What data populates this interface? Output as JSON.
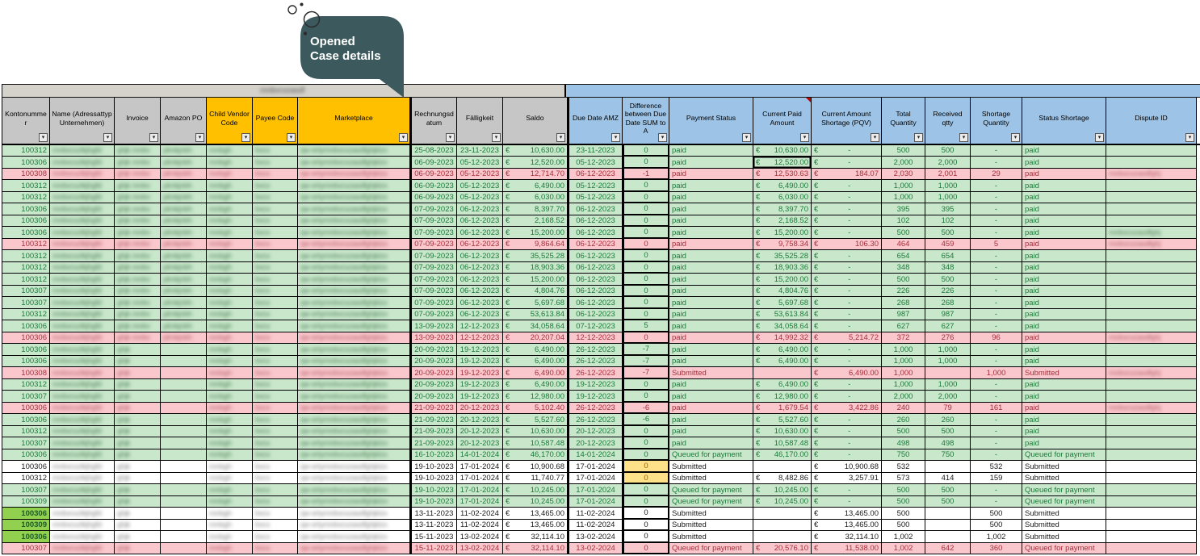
{
  "tooltip": {
    "line1": "Opened",
    "line2": "Case details",
    "bg": "#3C5A5E"
  },
  "columns": [
    {
      "id": "konto",
      "label": "Kontonummer",
      "group": "gray"
    },
    {
      "id": "name",
      "label": "Name (Adressattyp Unternehmen)",
      "group": "gray"
    },
    {
      "id": "invoice",
      "label": "Invoice",
      "group": "gray"
    },
    {
      "id": "po",
      "label": "Amazon PO",
      "group": "gray"
    },
    {
      "id": "cv",
      "label": "Child Vendor Code",
      "group": "orange"
    },
    {
      "id": "payee",
      "label": "Payee Code",
      "group": "orange"
    },
    {
      "id": "market",
      "label": "Marketplace",
      "group": "orange"
    },
    {
      "id": "rd",
      "label": "Rechnungsdatum",
      "group": "gray"
    },
    {
      "id": "fk",
      "label": "Fälligkeit",
      "group": "gray"
    },
    {
      "id": "saldo",
      "label": "Saldo",
      "group": "gray"
    },
    {
      "id": "due",
      "label": "Due Date AMZ",
      "group": "blue"
    },
    {
      "id": "diff",
      "label": "Difference between Due Date SUM to A",
      "group": "blue"
    },
    {
      "id": "pay",
      "label": "Payment Status",
      "group": "blue"
    },
    {
      "id": "paid",
      "label": "Current Paid Amount",
      "group": "blue"
    },
    {
      "id": "short",
      "label": "Current Amount Shortage (PQV)",
      "group": "blue"
    },
    {
      "id": "tq",
      "label": "Total Quantity",
      "group": "blue"
    },
    {
      "id": "rq",
      "label": "Received qtty",
      "group": "blue"
    },
    {
      "id": "sq",
      "label": "Shortage Quantity",
      "group": "blue"
    },
    {
      "id": "st",
      "label": "Status Shortage",
      "group": "blue"
    },
    {
      "id": "disp",
      "label": "Dispute ID",
      "group": "blue"
    }
  ],
  "rows": [
    {
      "konto": "100312",
      "rd": "25-08-2023",
      "fk": "23-11-2023",
      "saldo": "10,630.00",
      "due": "23-11-2023",
      "diff": "0",
      "pay": "paid",
      "paid": "10,630.00",
      "short": "-",
      "tq": "500",
      "rq": "500",
      "sq": "-",
      "st": "paid",
      "tone": "g",
      "po": 1,
      "disp": 0
    },
    {
      "konto": "100306",
      "rd": "06-09-2023",
      "fk": "05-12-2023",
      "saldo": "12,520.00",
      "due": "05-12-2023",
      "diff": "0",
      "pay": "paid",
      "paid": "12,520.00",
      "short": "-",
      "tq": "2,000",
      "rq": "2,000",
      "sq": "-",
      "st": "paid",
      "tone": "g",
      "po": 1,
      "disp": 0,
      "sel": 1
    },
    {
      "konto": "100308",
      "rd": "06-09-2023",
      "fk": "05-12-2023",
      "saldo": "12,714.70",
      "due": "06-12-2023",
      "diff": "-1",
      "pay": "paid",
      "paid": "12,530.63",
      "short": "184.07",
      "tq": "2,030",
      "rq": "2,001",
      "sq": "29",
      "st": "paid",
      "tone": "p",
      "po": 1,
      "disp": 1
    },
    {
      "konto": "100312",
      "rd": "06-09-2023",
      "fk": "05-12-2023",
      "saldo": "6,490.00",
      "due": "05-12-2023",
      "diff": "0",
      "pay": "paid",
      "paid": "6,490.00",
      "short": "-",
      "tq": "1,000",
      "rq": "1,000",
      "sq": "-",
      "st": "paid",
      "tone": "g",
      "po": 1,
      "disp": 0
    },
    {
      "konto": "100312",
      "rd": "06-09-2023",
      "fk": "05-12-2023",
      "saldo": "6,030.00",
      "due": "05-12-2023",
      "diff": "0",
      "pay": "paid",
      "paid": "6,030.00",
      "short": "-",
      "tq": "1,000",
      "rq": "1,000",
      "sq": "-",
      "st": "paid",
      "tone": "g",
      "po": 1,
      "disp": 0
    },
    {
      "konto": "100306",
      "rd": "07-09-2023",
      "fk": "06-12-2023",
      "saldo": "8,397.70",
      "due": "06-12-2023",
      "diff": "0",
      "pay": "paid",
      "paid": "8,397.70",
      "short": "-",
      "tq": "395",
      "rq": "395",
      "sq": "-",
      "st": "paid",
      "tone": "g",
      "po": 1,
      "disp": 0
    },
    {
      "konto": "100306",
      "rd": "07-09-2023",
      "fk": "06-12-2023",
      "saldo": "2,168.52",
      "due": "06-12-2023",
      "diff": "0",
      "pay": "paid",
      "paid": "2,168.52",
      "short": "-",
      "tq": "102",
      "rq": "102",
      "sq": "-",
      "st": "paid",
      "tone": "g",
      "po": 1,
      "disp": 0
    },
    {
      "konto": "100306",
      "rd": "07-09-2023",
      "fk": "06-12-2023",
      "saldo": "15,200.00",
      "due": "06-12-2023",
      "diff": "0",
      "pay": "paid",
      "paid": "15,200.00",
      "short": "-",
      "tq": "500",
      "rq": "500",
      "sq": "-",
      "st": "paid",
      "tone": "g",
      "po": 1,
      "disp": 1
    },
    {
      "konto": "100312",
      "rd": "07-09-2023",
      "fk": "06-12-2023",
      "saldo": "9,864.64",
      "due": "06-12-2023",
      "diff": "0",
      "pay": "paid",
      "paid": "9,758.34",
      "short": "106.30",
      "tq": "464",
      "rq": "459",
      "sq": "5",
      "st": "paid",
      "tone": "p",
      "po": 1,
      "disp": 1
    },
    {
      "konto": "100312",
      "rd": "07-09-2023",
      "fk": "06-12-2023",
      "saldo": "35,525.28",
      "due": "06-12-2023",
      "diff": "0",
      "pay": "paid",
      "paid": "35,525.28",
      "short": "-",
      "tq": "654",
      "rq": "654",
      "sq": "-",
      "st": "paid",
      "tone": "g",
      "po": 1,
      "disp": 0
    },
    {
      "konto": "100312",
      "rd": "07-09-2023",
      "fk": "06-12-2023",
      "saldo": "18,903.36",
      "due": "06-12-2023",
      "diff": "0",
      "pay": "paid",
      "paid": "18,903.36",
      "short": "-",
      "tq": "348",
      "rq": "348",
      "sq": "-",
      "st": "paid",
      "tone": "g",
      "po": 1,
      "disp": 0
    },
    {
      "konto": "100312",
      "rd": "07-09-2023",
      "fk": "06-12-2023",
      "saldo": "15,200.00",
      "due": "06-12-2023",
      "diff": "0",
      "pay": "paid",
      "paid": "15,200.00",
      "short": "-",
      "tq": "500",
      "rq": "500",
      "sq": "-",
      "st": "paid",
      "tone": "g",
      "po": 1,
      "disp": 0
    },
    {
      "konto": "100307",
      "rd": "07-09-2023",
      "fk": "06-12-2023",
      "saldo": "4,804.76",
      "due": "06-12-2023",
      "diff": "0",
      "pay": "paid",
      "paid": "4,804.76",
      "short": "-",
      "tq": "226",
      "rq": "226",
      "sq": "-",
      "st": "paid",
      "tone": "g",
      "po": 1,
      "disp": 0
    },
    {
      "konto": "100307",
      "rd": "07-09-2023",
      "fk": "06-12-2023",
      "saldo": "5,697.68",
      "due": "06-12-2023",
      "diff": "0",
      "pay": "paid",
      "paid": "5,697.68",
      "short": "-",
      "tq": "268",
      "rq": "268",
      "sq": "-",
      "st": "paid",
      "tone": "g",
      "po": 1,
      "disp": 0
    },
    {
      "konto": "100312",
      "rd": "07-09-2023",
      "fk": "06-12-2023",
      "saldo": "53,613.84",
      "due": "06-12-2023",
      "diff": "0",
      "pay": "paid",
      "paid": "53,613.84",
      "short": "-",
      "tq": "987",
      "rq": "987",
      "sq": "-",
      "st": "paid",
      "tone": "g",
      "po": 1,
      "disp": 0
    },
    {
      "konto": "100306",
      "rd": "13-09-2023",
      "fk": "12-12-2023",
      "saldo": "34,058.64",
      "due": "07-12-2023",
      "diff": "5",
      "pay": "paid",
      "paid": "34,058.64",
      "short": "-",
      "tq": "627",
      "rq": "627",
      "sq": "-",
      "st": "paid",
      "tone": "g",
      "po": 1,
      "disp": 0
    },
    {
      "konto": "100306",
      "rd": "13-09-2023",
      "fk": "12-12-2023",
      "saldo": "20,207.04",
      "due": "12-12-2023",
      "diff": "0",
      "pay": "paid",
      "paid": "14,992.32",
      "short": "5,214.72",
      "tq": "372",
      "rq": "276",
      "sq": "96",
      "st": "paid",
      "tone": "p",
      "po": 1,
      "disp": 1
    },
    {
      "konto": "100306",
      "rd": "20-09-2023",
      "fk": "19-12-2023",
      "saldo": "6,490.00",
      "due": "26-12-2023",
      "diff": "-7",
      "pay": "paid",
      "paid": "6,490.00",
      "short": "-",
      "tq": "1,000",
      "rq": "1,000",
      "sq": "-",
      "st": "paid",
      "tone": "g",
      "po": 0,
      "disp": 0
    },
    {
      "konto": "100306",
      "rd": "20-09-2023",
      "fk": "19-12-2023",
      "saldo": "6,490.00",
      "due": "26-12-2023",
      "diff": "-7",
      "pay": "paid",
      "paid": "6,490.00",
      "short": "-",
      "tq": "1,000",
      "rq": "1,000",
      "sq": "-",
      "st": "paid",
      "tone": "g",
      "po": 0,
      "disp": 0
    },
    {
      "konto": "100308",
      "rd": "20-09-2023",
      "fk": "19-12-2023",
      "saldo": "6,490.00",
      "due": "26-12-2023",
      "diff": "-7",
      "pay": "Submitted",
      "paid": "",
      "short": "6,490.00",
      "tq": "1,000",
      "rq": "",
      "sq": "1,000",
      "st": "Submitted",
      "tone": "p",
      "po": 0,
      "disp": 1
    },
    {
      "konto": "100312",
      "rd": "20-09-2023",
      "fk": "19-12-2023",
      "saldo": "6,490.00",
      "due": "19-12-2023",
      "diff": "0",
      "pay": "paid",
      "paid": "6,490.00",
      "short": "-",
      "tq": "1,000",
      "rq": "1,000",
      "sq": "-",
      "st": "paid",
      "tone": "g",
      "po": 0,
      "disp": 0
    },
    {
      "konto": "100307",
      "rd": "20-09-2023",
      "fk": "19-12-2023",
      "saldo": "12,980.00",
      "due": "19-12-2023",
      "diff": "0",
      "pay": "paid",
      "paid": "12,980.00",
      "short": "-",
      "tq": "2,000",
      "rq": "2,000",
      "sq": "-",
      "st": "paid",
      "tone": "g",
      "po": 0,
      "disp": 0
    },
    {
      "konto": "100306",
      "rd": "21-09-2023",
      "fk": "20-12-2023",
      "saldo": "5,102.40",
      "due": "26-12-2023",
      "diff": "-6",
      "pay": "paid",
      "paid": "1,679.54",
      "short": "3,422.86",
      "tq": "240",
      "rq": "79",
      "sq": "161",
      "st": "paid",
      "tone": "p",
      "po": 0,
      "disp": 1
    },
    {
      "konto": "100306",
      "rd": "21-09-2023",
      "fk": "20-12-2023",
      "saldo": "5,527.60",
      "due": "26-12-2023",
      "diff": "-6",
      "pay": "paid",
      "paid": "5,527.60",
      "short": "-",
      "tq": "260",
      "rq": "260",
      "sq": "-",
      "st": "paid",
      "tone": "g",
      "po": 0,
      "disp": 0
    },
    {
      "konto": "100312",
      "rd": "21-09-2023",
      "fk": "20-12-2023",
      "saldo": "10,630.00",
      "due": "20-12-2023",
      "diff": "0",
      "pay": "paid",
      "paid": "10,630.00",
      "short": "-",
      "tq": "500",
      "rq": "500",
      "sq": "-",
      "st": "paid",
      "tone": "g",
      "po": 0,
      "disp": 0
    },
    {
      "konto": "100307",
      "rd": "21-09-2023",
      "fk": "20-12-2023",
      "saldo": "10,587.48",
      "due": "20-12-2023",
      "diff": "0",
      "pay": "paid",
      "paid": "10,587.48",
      "short": "-",
      "tq": "498",
      "rq": "498",
      "sq": "-",
      "st": "paid",
      "tone": "g",
      "po": 0,
      "disp": 0
    },
    {
      "konto": "100306",
      "rd": "16-10-2023",
      "fk": "14-01-2024",
      "saldo": "46,170.00",
      "due": "14-01-2024",
      "diff": "0",
      "pay": "Queued for payment",
      "paid": "46,170.00",
      "short": "-",
      "tq": "750",
      "rq": "750",
      "sq": "-",
      "st": "Queued for payment",
      "tone": "g",
      "po": 0,
      "disp": 0
    },
    {
      "konto": "100306",
      "rd": "19-10-2023",
      "fk": "17-01-2024",
      "saldo": "10,900.68",
      "due": "17-01-2024",
      "diff": "0",
      "dy": 1,
      "pay": "Submitted",
      "paid": "",
      "short": "10,900.68",
      "tq": "532",
      "rq": "",
      "sq": "532",
      "st": "Submitted",
      "tone": "w",
      "po": 0,
      "disp": 0
    },
    {
      "konto": "100312",
      "rd": "19-10-2023",
      "fk": "17-01-2024",
      "saldo": "11,740.77",
      "due": "17-01-2024",
      "diff": "0",
      "dy": 1,
      "pay": "Submitted",
      "paid": "8,482.86",
      "short": "3,257.91",
      "tq": "573",
      "rq": "414",
      "sq": "159",
      "st": "Submitted",
      "tone": "w",
      "po": 0,
      "disp": 0
    },
    {
      "konto": "100307",
      "rd": "19-10-2023",
      "fk": "17-01-2024",
      "saldo": "10,245.00",
      "due": "17-01-2024",
      "diff": "0",
      "pay": "Queued for payment",
      "paid": "10,245.00",
      "short": "-",
      "tq": "500",
      "rq": "500",
      "sq": "-",
      "st": "Queued for payment",
      "tone": "g",
      "po": 0,
      "disp": 0
    },
    {
      "konto": "100309",
      "rd": "19-10-2023",
      "fk": "17-01-2024",
      "saldo": "10,245.00",
      "due": "17-01-2024",
      "diff": "0",
      "pay": "Queued for payment",
      "paid": "10,245.00",
      "short": "-",
      "tq": "500",
      "rq": "500",
      "sq": "-",
      "st": "Queued for payment",
      "tone": "g",
      "po": 0,
      "disp": 0
    },
    {
      "konto": "100306",
      "rd": "13-11-2023",
      "fk": "11-02-2024",
      "saldo": "13,465.00",
      "due": "11-02-2024",
      "diff": "0",
      "pay": "Submitted",
      "paid": "",
      "short": "13,465.00",
      "tq": "500",
      "rq": "",
      "sq": "500",
      "st": "Submitted",
      "tone": "w",
      "kg": 1,
      "po": 0,
      "disp": 0
    },
    {
      "konto": "100309",
      "rd": "13-11-2023",
      "fk": "11-02-2024",
      "saldo": "13,465.00",
      "due": "11-02-2024",
      "diff": "0",
      "pay": "Submitted",
      "paid": "",
      "short": "13,465.00",
      "tq": "500",
      "rq": "",
      "sq": "500",
      "st": "Submitted",
      "tone": "w",
      "kg": 1,
      "po": 0,
      "disp": 0
    },
    {
      "konto": "100306",
      "rd": "15-11-2023",
      "fk": "13-02-2024",
      "saldo": "32,114.10",
      "due": "13-02-2024",
      "diff": "0",
      "pay": "Submitted",
      "paid": "",
      "short": "32,114.10",
      "tq": "1,002",
      "rq": "",
      "sq": "1,002",
      "st": "Submitted",
      "tone": "w",
      "kg": 1,
      "po": 0,
      "disp": 0
    },
    {
      "konto": "100307",
      "rd": "15-11-2023",
      "fk": "13-02-2024",
      "saldo": "32,114.10",
      "due": "13-02-2024",
      "diff": "0",
      "pay": "Queued for payment",
      "paid": "20,576.10",
      "short": "11,538.00",
      "tq": "1,002",
      "rq": "642",
      "sq": "360",
      "st": "Queued for payment",
      "tone": "p",
      "po": 0,
      "disp": 0
    }
  ]
}
